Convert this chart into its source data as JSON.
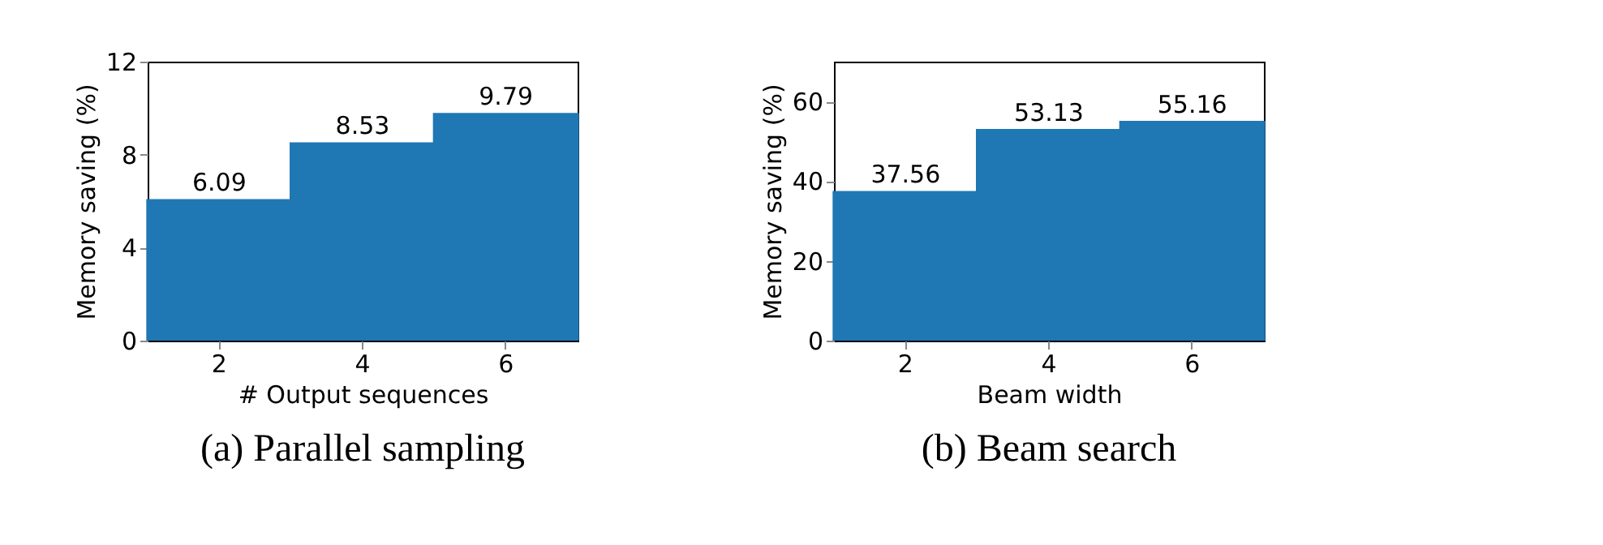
{
  "chart_data": [
    {
      "type": "bar",
      "title": "(a) Parallel sampling",
      "xlabel": "# Output sequences",
      "ylabel": "Memory saving (%)",
      "categories": [
        "2",
        "4",
        "6"
      ],
      "values": [
        6.09,
        8.53,
        9.79
      ],
      "color": "#1f77b4",
      "ylim": [
        0,
        12
      ],
      "yticks": [
        0,
        4,
        8,
        12
      ],
      "data_labels": true,
      "grid": false
    },
    {
      "type": "bar",
      "title": "(b) Beam search",
      "xlabel": "Beam width",
      "ylabel": "Memory saving (%)",
      "categories": [
        "2",
        "4",
        "6"
      ],
      "values": [
        37.56,
        53.13,
        55.16
      ],
      "color": "#1f77b4",
      "ylim": [
        0,
        70
      ],
      "yticks": [
        0,
        20,
        40,
        60
      ],
      "data_labels": true,
      "grid": false
    }
  ]
}
